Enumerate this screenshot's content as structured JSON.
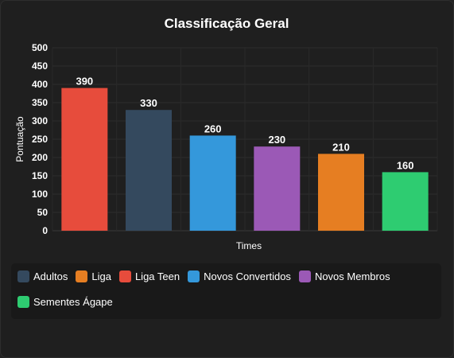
{
  "chart_data": {
    "type": "bar",
    "title": "Classificação Geral",
    "xlabel": "Times",
    "ylabel": "Pontuação",
    "ylim": [
      0,
      500
    ],
    "yticks": [
      0,
      50,
      100,
      150,
      200,
      250,
      300,
      350,
      400,
      450,
      500
    ],
    "grid": true,
    "legend_position": "bottom",
    "bars": [
      {
        "value": 390,
        "color": "#e74c3c"
      },
      {
        "value": 330,
        "color": "#34495e"
      },
      {
        "value": 260,
        "color": "#3498db"
      },
      {
        "value": 230,
        "color": "#9b59b6"
      },
      {
        "value": 210,
        "color": "#e67e22"
      },
      {
        "value": 160,
        "color": "#2ecc71"
      }
    ],
    "legend": [
      {
        "label": "Adultos",
        "color": "#34495e"
      },
      {
        "label": "Liga",
        "color": "#e67e22"
      },
      {
        "label": "Liga Teen",
        "color": "#e74c3c"
      },
      {
        "label": "Novos Convertidos",
        "color": "#3498db"
      },
      {
        "label": "Novos Membros",
        "color": "#9b59b6"
      },
      {
        "label": "Sementes Ágape",
        "color": "#2ecc71"
      }
    ]
  }
}
